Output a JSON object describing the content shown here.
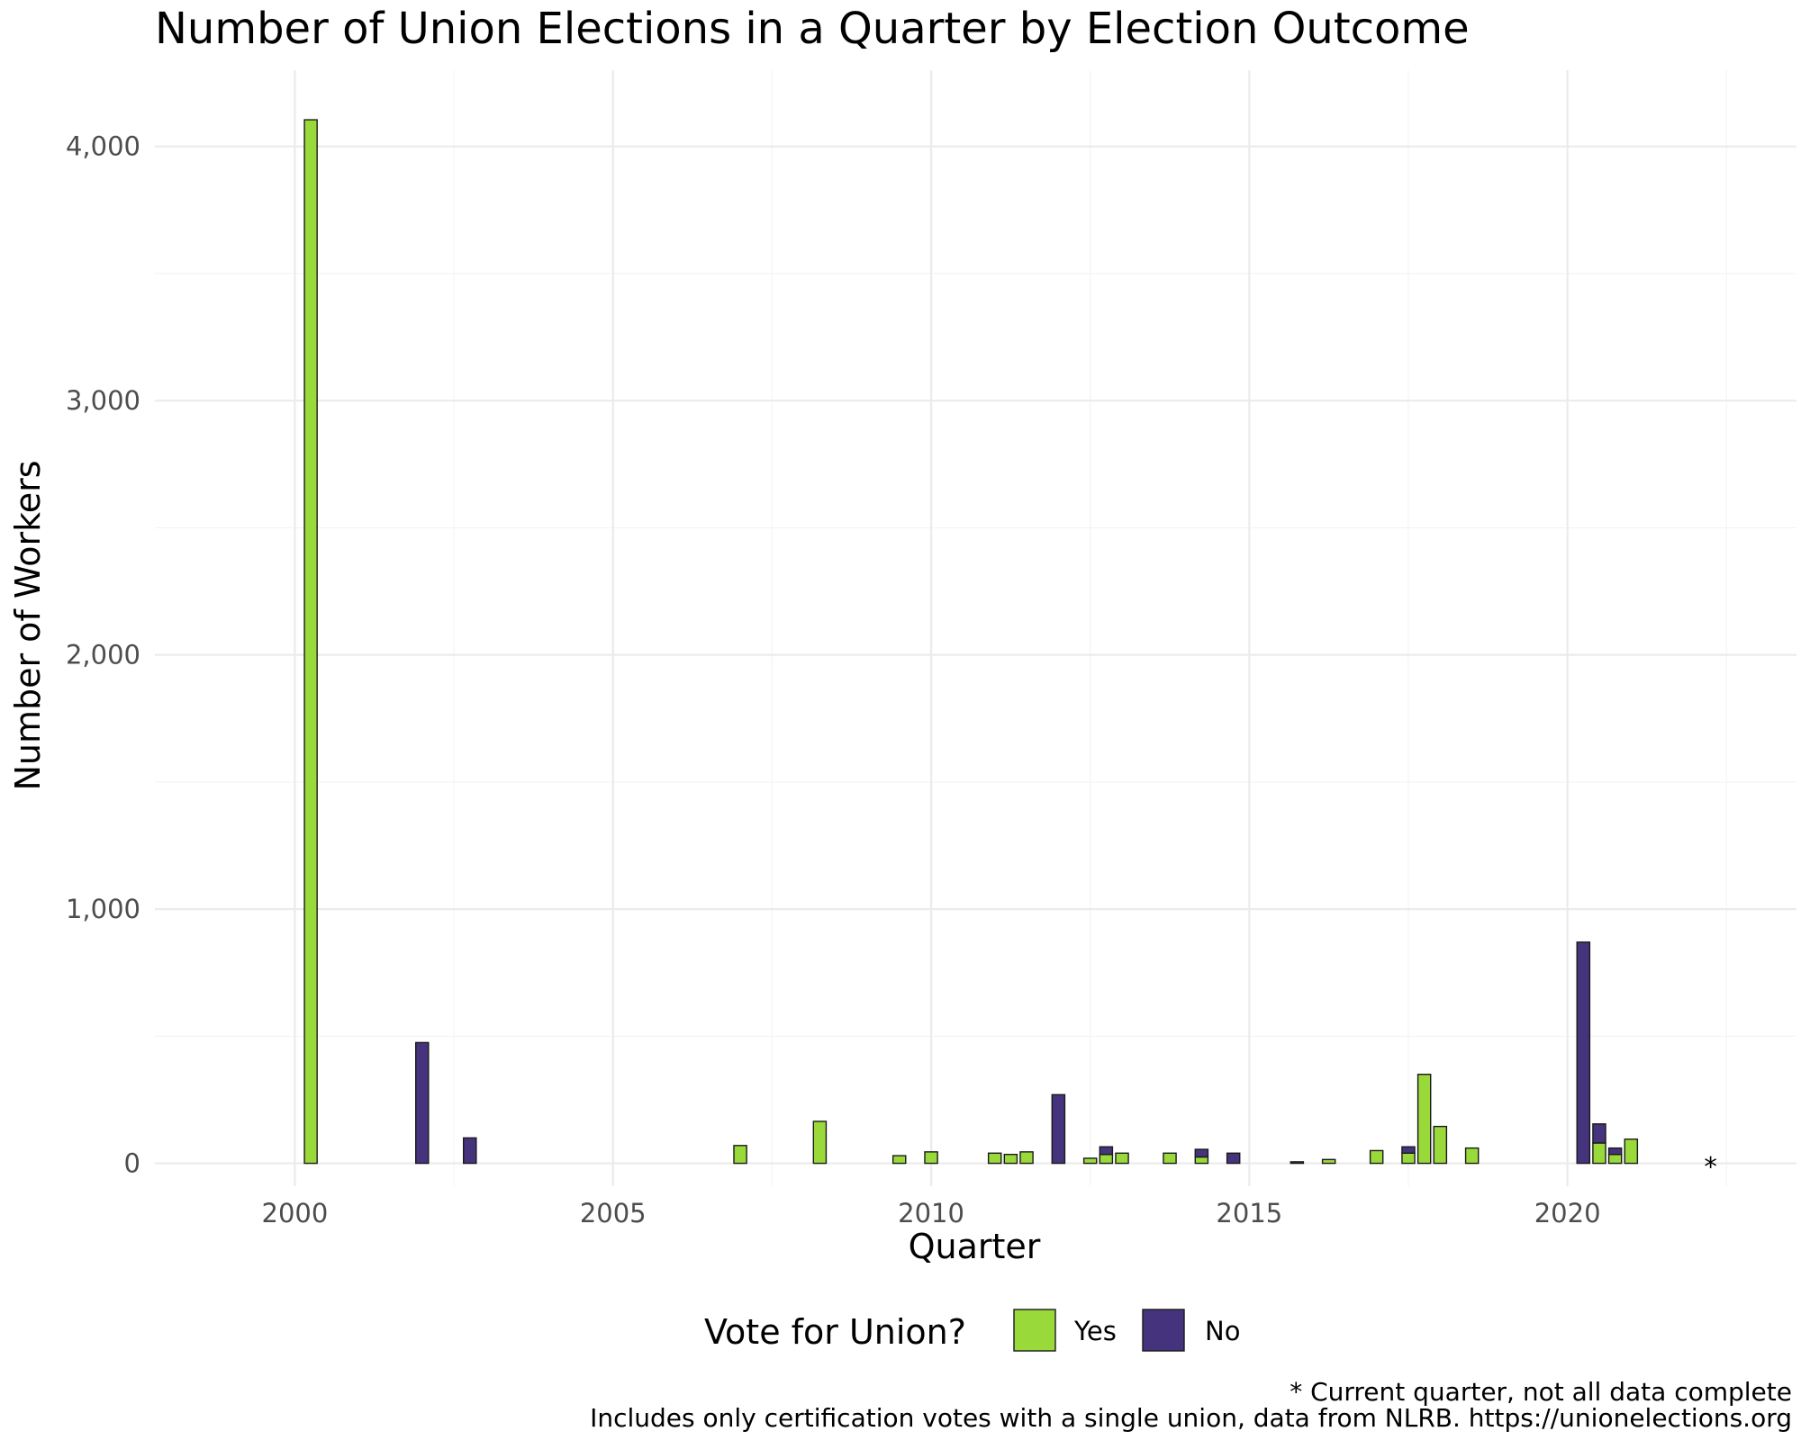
{
  "chart_data": {
    "type": "bar",
    "stacked": true,
    "title": "Number of Union Elections in a Quarter by Election Outcome",
    "xlabel": "Quarter",
    "ylabel": "Number of Workers",
    "xlim": [
      1997.8,
      2023.6
    ],
    "ylim": [
      -90,
      4300
    ],
    "x_ticks": [
      2000,
      2005,
      2010,
      2015,
      2020
    ],
    "x_tick_labels": [
      "2000",
      "2005",
      "2010",
      "2015",
      "2020"
    ],
    "y_ticks": [
      0,
      1000,
      2000,
      3000,
      4000
    ],
    "y_tick_labels": [
      "0",
      "1,000",
      "2,000",
      "3,000",
      "4,000"
    ],
    "grid": true,
    "legend": {
      "title": "Vote for Union?",
      "position": "bottom",
      "entries": [
        {
          "label": "Yes",
          "color": "#9ad93a"
        },
        {
          "label": "No",
          "color": "#46337e"
        }
      ]
    },
    "bar_width_years": 0.2,
    "series": [
      {
        "name": "Yes",
        "color": "#9ad93a",
        "points": [
          {
            "x": 2000.25,
            "y": 4105
          },
          {
            "x": 2007.0,
            "y": 70
          },
          {
            "x": 2008.25,
            "y": 165
          },
          {
            "x": 2009.5,
            "y": 30
          },
          {
            "x": 2010.0,
            "y": 45
          },
          {
            "x": 2011.0,
            "y": 40
          },
          {
            "x": 2011.25,
            "y": 35
          },
          {
            "x": 2011.5,
            "y": 45
          },
          {
            "x": 2012.5,
            "y": 20
          },
          {
            "x": 2012.75,
            "y": 35
          },
          {
            "x": 2013.0,
            "y": 40
          },
          {
            "x": 2013.75,
            "y": 40
          },
          {
            "x": 2014.25,
            "y": 25
          },
          {
            "x": 2016.25,
            "y": 15
          },
          {
            "x": 2017.0,
            "y": 50
          },
          {
            "x": 2017.5,
            "y": 40
          },
          {
            "x": 2017.75,
            "y": 350
          },
          {
            "x": 2018.0,
            "y": 145
          },
          {
            "x": 2018.5,
            "y": 60
          },
          {
            "x": 2020.5,
            "y": 80
          },
          {
            "x": 2020.75,
            "y": 35
          },
          {
            "x": 2021.0,
            "y": 95
          }
        ]
      },
      {
        "name": "No",
        "color": "#46337e",
        "points": [
          {
            "x": 2002.0,
            "y": 475
          },
          {
            "x": 2002.75,
            "y": 100
          },
          {
            "x": 2012.0,
            "y": 270
          },
          {
            "x": 2012.75,
            "y": 30
          },
          {
            "x": 2014.25,
            "y": 30
          },
          {
            "x": 2014.75,
            "y": 40
          },
          {
            "x": 2015.75,
            "y": 6
          },
          {
            "x": 2017.5,
            "y": 25
          },
          {
            "x": 2020.25,
            "y": 870
          },
          {
            "x": 2020.5,
            "y": 75
          },
          {
            "x": 2020.75,
            "y": 25
          }
        ]
      }
    ],
    "annotations": [
      {
        "text": "*",
        "x": 2022.25,
        "y": 0
      }
    ],
    "caption": [
      "* Current quarter, not all data complete",
      "Includes only certification votes with a single union, data from NLRB. https://unionelections.org"
    ]
  }
}
